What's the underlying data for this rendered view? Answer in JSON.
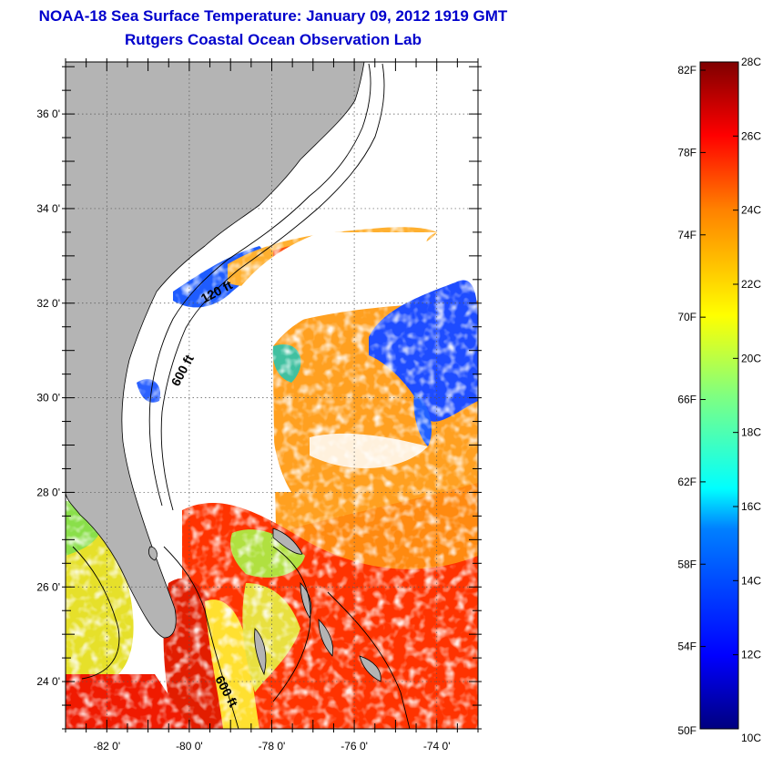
{
  "header": {
    "title": "NOAA-18 Sea Surface Temperature:  January 09, 2012 1919 GMT",
    "subtitle": "Rutgers Coastal Ocean Observation Lab"
  },
  "map": {
    "lat_labels": [
      "36 0'",
      "34 0'",
      "32 0'",
      "30 0'",
      "28 0'",
      "26 0'",
      "24 0'"
    ],
    "lat_values": [
      36,
      34,
      32,
      30,
      28,
      26,
      24
    ],
    "lon_labels": [
      "-82 0'",
      "-80 0'",
      "-78 0'",
      "-76 0'",
      "-74 0'"
    ],
    "lon_values": [
      -82,
      -80,
      -78,
      -76,
      -74
    ],
    "lat_range": [
      23,
      37.1
    ],
    "lon_range": [
      -83,
      -73
    ],
    "contour_labels": [
      "120 ft",
      "600 ft",
      "600 ft"
    ],
    "colors": {
      "land": "#b4b4b4",
      "cloud": "#ffffff"
    }
  },
  "colorbar": {
    "fahrenheit_labels": [
      "82F",
      "78F",
      "74F",
      "70F",
      "66F",
      "62F",
      "58F",
      "54F",
      "50F"
    ],
    "celsius_labels": [
      "28C",
      "26C",
      "24C",
      "22C",
      "20C",
      "18C",
      "16C",
      "14C",
      "12C",
      "10C"
    ],
    "range_c": [
      10,
      28
    ]
  }
}
